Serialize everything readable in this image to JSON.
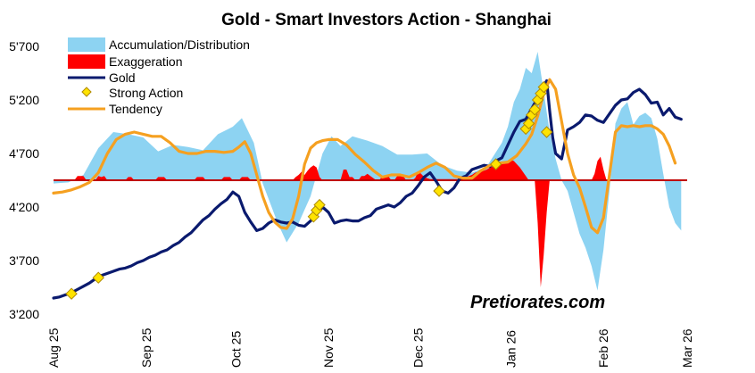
{
  "chart_data": {
    "type": "line",
    "title": "Gold - Smart Investors Action - Shanghai",
    "xlabel": "",
    "ylabel": "",
    "ylim": [
      3200,
      5700
    ],
    "y_ticks": [
      3200,
      3700,
      4200,
      4700,
      5200,
      5700
    ],
    "y_tick_labels": [
      "3'200",
      "3'700",
      "4'200",
      "4'700",
      "5'200",
      "5'700"
    ],
    "x_range_days": [
      0,
      212
    ],
    "x_ticks": [
      {
        "label": "Aug 25",
        "day": 0
      },
      {
        "label": "Sep 25",
        "day": 31
      },
      {
        "label": "Oct 25",
        "day": 61
      },
      {
        "label": "Nov 25",
        "day": 92
      },
      {
        "label": "Dec 25",
        "day": 122
      },
      {
        "label": "Jan 26",
        "day": 153
      },
      {
        "label": "Feb 26",
        "day": 184
      },
      {
        "label": "Mar 26",
        "day": 212
      }
    ],
    "baseline": 4450,
    "grid": false,
    "watermark": "Pretiorates.com",
    "colors": {
      "accumulation": "#8dd3f2",
      "exaggeration": "#ff0000",
      "gold": "#0a1a6e",
      "strong_action": "#ffe300",
      "tendency": "#f5a020",
      "baseline": "#c00000"
    },
    "legend": [
      {
        "name": "Accumulation/Distribution",
        "style": "fill",
        "color": "#8dd3f2"
      },
      {
        "name": "Exaggeration",
        "style": "fill",
        "color": "#ff0000"
      },
      {
        "name": "Gold",
        "style": "line",
        "color": "#0a1a6e"
      },
      {
        "name": "Strong Action",
        "style": "marker",
        "color": "#ffe300"
      },
      {
        "name": "Tendency",
        "style": "line",
        "color": "#f5a020"
      }
    ],
    "series": [
      {
        "name": "Accumulation/Distribution",
        "kind": "area",
        "x": [
          0,
          5,
          10,
          15,
          20,
          25,
          30,
          35,
          40,
          45,
          50,
          55,
          60,
          63,
          67,
          70,
          75,
          78,
          82,
          86,
          90,
          93,
          96,
          100,
          105,
          110,
          115,
          120,
          125,
          130,
          135,
          140,
          145,
          150,
          152,
          154,
          156,
          158,
          160,
          162,
          164,
          166,
          168,
          170,
          172,
          174,
          176,
          178,
          180,
          182,
          184,
          186,
          188,
          190,
          192,
          194,
          196,
          198,
          200,
          202,
          204,
          206,
          208,
          210
        ],
        "values": [
          4420,
          4430,
          4500,
          4750,
          4900,
          4880,
          4850,
          4720,
          4780,
          4760,
          4730,
          4880,
          4950,
          5030,
          4800,
          4420,
          4050,
          3870,
          4050,
          4300,
          4700,
          4860,
          4770,
          4860,
          4820,
          4770,
          4690,
          4690,
          4700,
          4590,
          4540,
          4520,
          4580,
          4800,
          4950,
          5180,
          5300,
          5500,
          5450,
          5650,
          5280,
          4900,
          4650,
          4450,
          4350,
          4150,
          3950,
          3820,
          3650,
          3420,
          3800,
          4350,
          4980,
          5120,
          5180,
          4970,
          5050,
          5080,
          5030,
          4840,
          4510,
          4200,
          4050,
          3980
        ]
      },
      {
        "name": "Exaggeration",
        "kind": "area",
        "x": [
          0,
          7,
          8,
          9,
          10,
          11,
          14,
          15,
          16,
          17,
          18,
          24,
          25,
          26,
          27,
          34,
          35,
          36,
          37,
          38,
          47,
          48,
          49,
          50,
          51,
          56,
          57,
          58,
          59,
          60,
          62,
          63,
          64,
          65,
          66,
          80,
          81,
          82,
          83,
          84,
          85,
          86,
          87,
          88,
          89,
          90,
          91,
          96,
          97,
          98,
          99,
          100,
          101,
          102,
          103,
          104,
          105,
          106,
          107,
          108,
          109,
          110,
          111,
          112,
          113,
          114,
          115,
          116,
          117,
          118,
          120,
          121,
          122,
          123,
          124,
          125,
          126,
          127,
          128,
          129,
          130,
          131,
          132,
          133,
          134,
          135,
          136,
          137,
          138,
          139,
          140,
          141,
          142,
          143,
          144,
          145,
          146,
          147,
          148,
          149,
          150,
          151,
          152,
          153,
          154,
          155,
          156,
          157,
          158,
          159,
          160,
          161,
          162,
          163,
          164,
          165,
          166,
          167,
          168,
          169,
          180,
          181,
          182,
          183,
          184,
          185,
          212
        ],
        "values": [
          0,
          0,
          40,
          40,
          40,
          0,
          0,
          40,
          30,
          40,
          0,
          0,
          30,
          30,
          0,
          0,
          30,
          30,
          30,
          0,
          0,
          30,
          30,
          30,
          0,
          0,
          30,
          30,
          30,
          0,
          0,
          30,
          30,
          30,
          0,
          0,
          30,
          50,
          80,
          50,
          90,
          120,
          140,
          120,
          30,
          0,
          0,
          0,
          100,
          100,
          30,
          30,
          0,
          0,
          40,
          40,
          60,
          40,
          20,
          0,
          0,
          40,
          40,
          40,
          0,
          0,
          40,
          40,
          40,
          0,
          0,
          20,
          80,
          60,
          30,
          20,
          10,
          10,
          10,
          10,
          10,
          10,
          10,
          10,
          10,
          10,
          10,
          20,
          30,
          40,
          50,
          70,
          80,
          80,
          90,
          100,
          120,
          130,
          150,
          150,
          150,
          160,
          180,
          190,
          180,
          150,
          120,
          80,
          40,
          0,
          0,
          0,
          -400,
          -1000,
          -700,
          -300,
          0,
          0,
          0,
          0,
          0,
          60,
          180,
          220,
          100,
          0,
          0
        ]
      },
      {
        "name": "Gold",
        "kind": "line",
        "x": [
          0,
          2,
          4,
          6,
          8,
          10,
          12,
          14,
          16,
          18,
          20,
          22,
          24,
          26,
          28,
          30,
          32,
          34,
          36,
          38,
          40,
          42,
          44,
          46,
          48,
          50,
          52,
          54,
          56,
          58,
          60,
          62,
          64,
          66,
          68,
          70,
          72,
          74,
          76,
          78,
          80,
          82,
          84,
          86,
          88,
          90,
          92,
          94,
          96,
          98,
          100,
          102,
          104,
          106,
          108,
          110,
          112,
          114,
          116,
          118,
          120,
          122,
          124,
          126,
          128,
          130,
          132,
          134,
          136,
          138,
          140,
          142,
          144,
          146,
          148,
          150,
          152,
          154,
          156,
          158,
          160,
          162,
          164,
          165,
          166,
          167,
          168,
          170,
          172,
          174,
          176,
          178,
          180,
          182,
          184,
          186,
          188,
          190,
          192,
          194,
          196,
          198,
          200,
          202,
          204,
          206,
          208,
          210
        ],
        "values": [
          3350,
          3360,
          3380,
          3400,
          3430,
          3460,
          3490,
          3530,
          3560,
          3580,
          3600,
          3620,
          3630,
          3650,
          3680,
          3700,
          3730,
          3750,
          3780,
          3800,
          3840,
          3870,
          3920,
          3960,
          4020,
          4080,
          4120,
          4180,
          4230,
          4270,
          4340,
          4300,
          4150,
          4060,
          3980,
          4000,
          4050,
          4080,
          4060,
          4050,
          4060,
          4030,
          4020,
          4070,
          4130,
          4200,
          4150,
          4050,
          4070,
          4080,
          4070,
          4070,
          4100,
          4120,
          4180,
          4200,
          4220,
          4200,
          4240,
          4300,
          4330,
          4400,
          4480,
          4520,
          4440,
          4350,
          4330,
          4380,
          4470,
          4490,
          4550,
          4570,
          4590,
          4580,
          4630,
          4660,
          4780,
          4900,
          5000,
          5020,
          5120,
          5220,
          5330,
          5380,
          5100,
          4850,
          4700,
          4650,
          4920,
          4950,
          4990,
          5060,
          5050,
          5010,
          4990,
          5070,
          5150,
          5200,
          5210,
          5270,
          5300,
          5250,
          5170,
          5180,
          5060,
          5120,
          5040,
          5020
        ]
      },
      {
        "name": "Tendency",
        "kind": "line",
        "x": [
          0,
          3,
          6,
          9,
          12,
          15,
          18,
          21,
          24,
          27,
          30,
          33,
          36,
          39,
          42,
          45,
          48,
          51,
          54,
          57,
          60,
          62,
          64,
          66,
          68,
          70,
          72,
          74,
          76,
          78,
          80,
          82,
          84,
          86,
          88,
          90,
          92,
          95,
          98,
          101,
          104,
          107,
          110,
          113,
          116,
          119,
          122,
          125,
          128,
          131,
          134,
          137,
          140,
          143,
          146,
          149,
          152,
          155,
          158,
          160,
          162,
          164,
          166,
          168,
          170,
          172,
          174,
          176,
          178,
          180,
          182,
          184,
          186,
          188,
          190,
          192,
          194,
          196,
          198,
          200,
          202,
          204,
          206,
          208
        ],
        "values": [
          4330,
          4340,
          4360,
          4390,
          4430,
          4520,
          4700,
          4830,
          4880,
          4900,
          4880,
          4860,
          4860,
          4800,
          4720,
          4700,
          4700,
          4720,
          4720,
          4710,
          4720,
          4760,
          4810,
          4700,
          4500,
          4300,
          4150,
          4060,
          4010,
          4000,
          4090,
          4300,
          4600,
          4750,
          4800,
          4820,
          4830,
          4830,
          4780,
          4690,
          4620,
          4540,
          4480,
          4500,
          4500,
          4480,
          4520,
          4570,
          4610,
          4570,
          4490,
          4470,
          4470,
          4540,
          4590,
          4610,
          4620,
          4680,
          4790,
          4880,
          5050,
          5260,
          5390,
          5300,
          5000,
          4700,
          4500,
          4380,
          4200,
          4010,
          3960,
          4100,
          4500,
          4900,
          4960,
          4950,
          4960,
          4950,
          4960,
          4960,
          4930,
          4880,
          4770,
          4610
        ]
      },
      {
        "name": "Strong Action",
        "kind": "scatter",
        "x": [
          6,
          15,
          87,
          88,
          89,
          129,
          148,
          158,
          159,
          160,
          161,
          162,
          163,
          164,
          165
        ],
        "values": [
          3390,
          3540,
          4110,
          4170,
          4220,
          4350,
          4600,
          4930,
          4980,
          5060,
          5110,
          5200,
          5260,
          5320,
          4900
        ]
      }
    ]
  }
}
